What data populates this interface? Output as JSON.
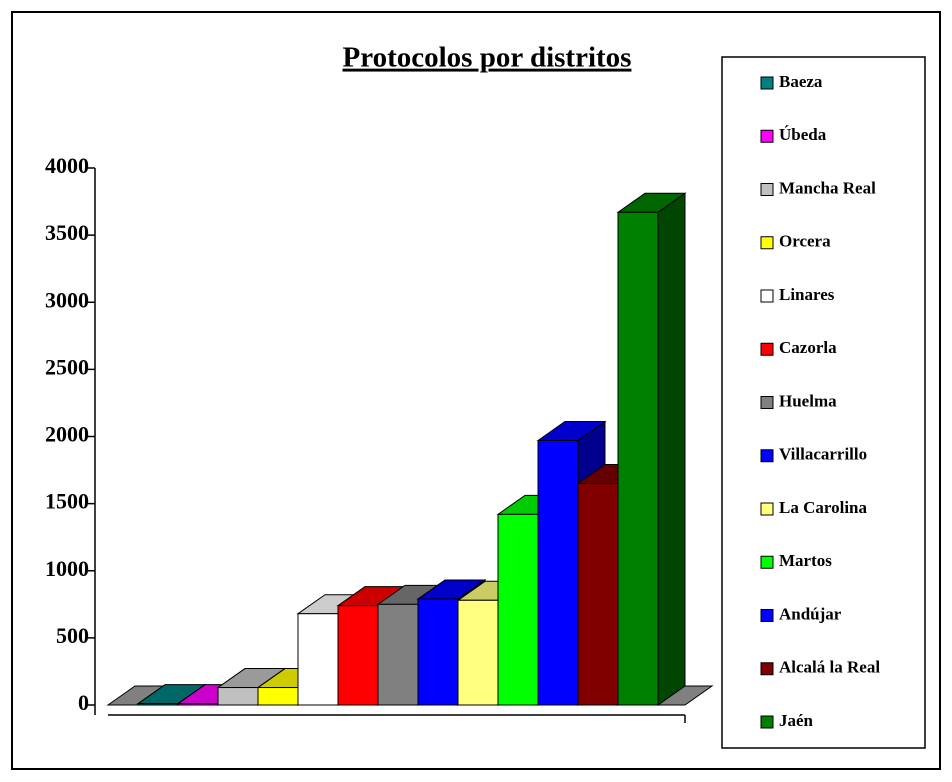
{
  "chart_data": {
    "type": "bar3d",
    "title": "Protocolos por distritos",
    "categories": [
      "Baeza",
      "Úbeda",
      "Mancha Real",
      "Orcera",
      "Linares",
      "Cazorla",
      "Huelma",
      "Villacarrillo",
      "La Carolina",
      "Martos",
      "Andújar",
      "Alcalá la Real",
      "Jaén"
    ],
    "values": [
      10,
      10,
      130,
      130,
      680,
      740,
      750,
      790,
      780,
      1420,
      1970,
      1650,
      3670
    ],
    "colors": [
      "#008080",
      "#ff00ff",
      "#c0c0c0",
      "#ffff00",
      "#ffffff",
      "#ff0000",
      "#808080",
      "#0000ff",
      "#ffff80",
      "#00ff00",
      "#0000ff",
      "#800000",
      "#008000"
    ],
    "ylim": [
      0,
      4000
    ],
    "yticks": [
      0,
      500,
      1000,
      1500,
      2000,
      2500,
      3000,
      3500,
      4000
    ],
    "legend": "right"
  }
}
